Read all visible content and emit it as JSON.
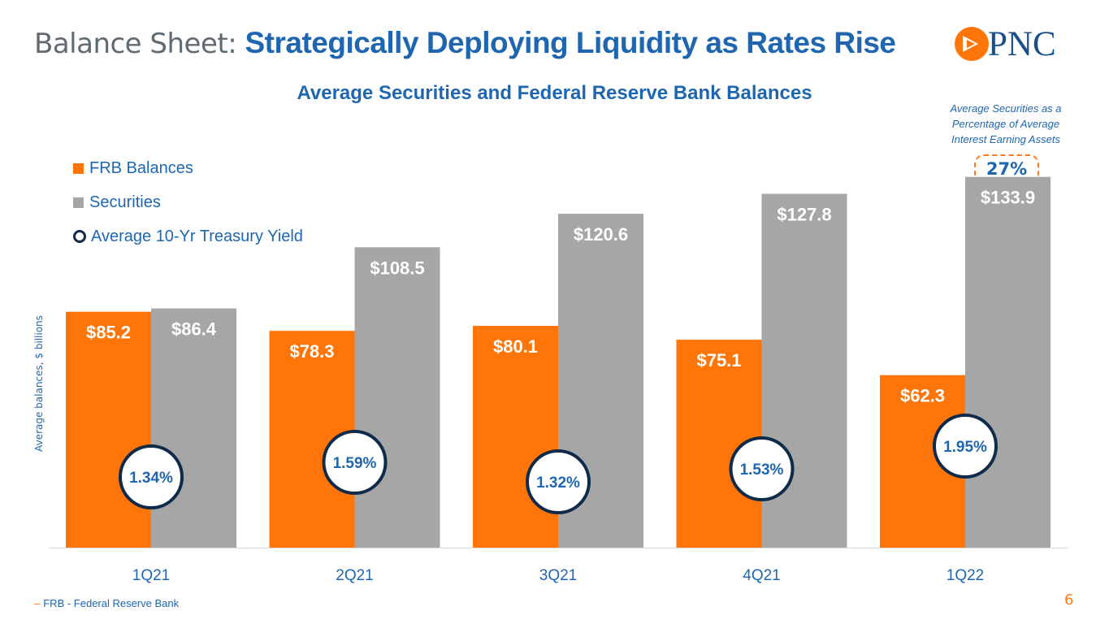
{
  "header": {
    "title_prefix": "Balance Sheet:",
    "title_main": "Strategically Deploying Liquidity as Rates Rise",
    "logo_text": "PNC"
  },
  "colors": {
    "frb": "#ff7508",
    "securities": "#a6a6a6",
    "accent_blue": "#1f66b0",
    "ring": "#102a4a"
  },
  "note": {
    "text": "Average Securities as a Percentage of Average Interest Earning Assets",
    "value": "27%"
  },
  "footnote": {
    "dash": "–",
    "text": "FRB - Federal Reserve Bank"
  },
  "page_number": "6",
  "chart_data": {
    "type": "bar",
    "title": "Average Securities and Federal Reserve Bank Balances",
    "ylabel": "Average balances, $ billions",
    "xlabel": "",
    "categories": [
      "1Q21",
      "2Q21",
      "3Q21",
      "4Q21",
      "1Q22"
    ],
    "series": [
      {
        "name": "FRB Balances",
        "values": [
          85.2,
          78.3,
          80.1,
          75.1,
          62.3
        ],
        "labels": [
          "$85.2",
          "$78.3",
          "$80.1",
          "$75.1",
          "$62.3"
        ]
      },
      {
        "name": "Securities",
        "values": [
          86.4,
          108.5,
          120.6,
          127.8,
          133.9
        ],
        "labels": [
          "$86.4",
          "$108.5",
          "$120.6",
          "$127.8",
          "$133.9"
        ]
      }
    ],
    "overlay": {
      "name": "Average 10-Yr Treasury Yield",
      "values": [
        1.34,
        1.59,
        1.32,
        1.53,
        1.95
      ],
      "labels": [
        "1.34%",
        "1.59%",
        "1.32%",
        "1.53%",
        "1.95%"
      ]
    },
    "ylim": [
      0,
      135
    ],
    "grid": false,
    "legend_position": "top-left"
  }
}
